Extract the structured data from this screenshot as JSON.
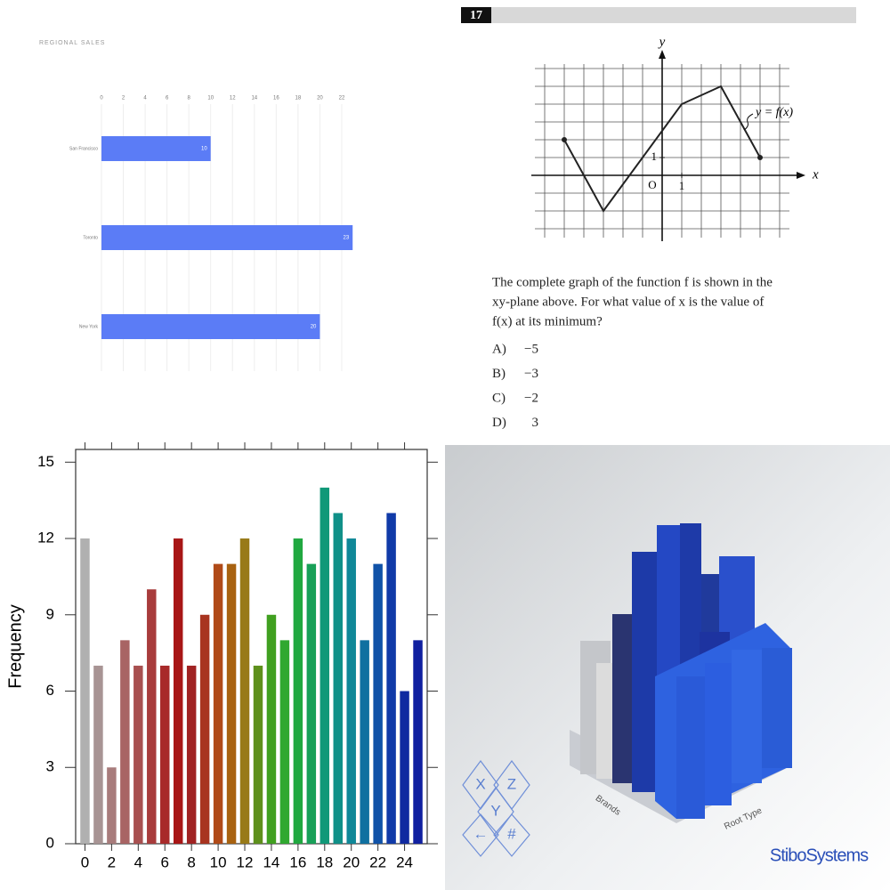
{
  "chart_data": [
    {
      "type": "barh",
      "title": "REGIONAL SALES",
      "categories": [
        "San Francisco",
        "Toronto",
        "New York"
      ],
      "values": [
        10,
        23,
        20
      ],
      "color": "#5b7cf6",
      "xlim": [
        0,
        24
      ],
      "xticks": [
        0,
        2,
        4,
        6,
        8,
        10,
        12,
        14,
        16,
        18,
        20,
        22
      ],
      "grid": true
    },
    {
      "type": "line",
      "x": [
        -5,
        -3,
        1,
        3,
        5
      ],
      "values": [
        2,
        -2,
        4,
        5,
        1
      ],
      "color": "#222222",
      "xlim": [
        -6.5,
        6.5
      ],
      "ylim": [
        -3.5,
        6.25
      ],
      "xticks": [
        1
      ],
      "yticks": [
        1
      ],
      "xlabel": "x",
      "ylabel": "y",
      "origin_label": "O",
      "annotation": "y = f(x)",
      "grid": true
    },
    {
      "type": "bar",
      "x": [
        0,
        1,
        2,
        3,
        4,
        5,
        6,
        7,
        8,
        9,
        10,
        11,
        12,
        13,
        14,
        15,
        16,
        17,
        18,
        19,
        20,
        21,
        22,
        23,
        24,
        25
      ],
      "values": [
        12,
        7,
        3,
        8,
        7,
        10,
        7,
        12,
        7,
        9,
        11,
        11,
        12,
        7,
        9,
        8,
        12,
        11,
        14,
        13,
        12,
        8,
        11,
        13,
        6,
        8
      ],
      "colors": [
        "#b0b0b0",
        "#a89494",
        "#a87c7c",
        "#a86464",
        "#a85050",
        "#a83c3c",
        "#a82a2a",
        "#a81616",
        "#a02222",
        "#a83420",
        "#b04a18",
        "#a86210",
        "#987a18",
        "#5e901c",
        "#40a020",
        "#30a830",
        "#20a840",
        "#18a058",
        "#109878",
        "#109088",
        "#108898",
        "#1070a0",
        "#1052a8",
        "#103aa8",
        "#102aa0",
        "#1020a0"
      ],
      "xlim": [
        -0.7,
        25.7
      ],
      "ylim": [
        0,
        15.5
      ],
      "xticks": [
        0,
        2,
        4,
        6,
        8,
        10,
        12,
        14,
        16,
        18,
        20,
        22,
        24
      ],
      "yticks": [
        0,
        3,
        6,
        9,
        12,
        15
      ],
      "ylabel": "Frequency"
    }
  ],
  "question": {
    "number": "17",
    "text": [
      "The complete graph of the function f is shown in the",
      "xy-plane above.  For what value of x is the value of",
      "f(x) at its minimum?"
    ],
    "choices": [
      {
        "letter": "A)",
        "value": "−5"
      },
      {
        "letter": "B)",
        "value": "−3"
      },
      {
        "letter": "C)",
        "value": "−2"
      },
      {
        "letter": "D)",
        "value": "3"
      }
    ]
  },
  "scene": {
    "logo": "StiboSystems",
    "nav": [
      "X",
      "Z",
      "Y",
      "←",
      "#"
    ],
    "axis_labels": [
      "Brands",
      "Root Type"
    ]
  }
}
